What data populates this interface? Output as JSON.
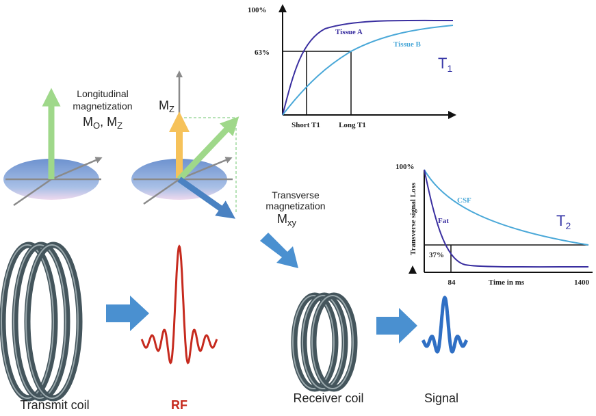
{
  "longitudinal": {
    "lines": [
      "Longitudinal",
      "magnetization"
    ],
    "symbol": [
      "M",
      "O",
      ", M",
      "Z"
    ]
  },
  "mz_label": [
    "M",
    "Z"
  ],
  "transverse": {
    "lines": [
      "Transverse",
      "magnetization"
    ],
    "symbol": [
      "M",
      "xy"
    ]
  },
  "t1_chart": {
    "top_label": "100%",
    "level_label": "63%",
    "curve_a": "Tissue A",
    "curve_b": "Tissue B",
    "x_labels": [
      "Short T1",
      "Long T1"
    ],
    "name": [
      "T",
      "1"
    ]
  },
  "t2_chart": {
    "top_label": "100%",
    "level_label": "37%",
    "curve_a": "CSF",
    "curve_b": "Fat",
    "y_axis": "Transverse signal Loss",
    "x_labels": [
      "84",
      "Time in ms",
      "1400"
    ],
    "name": [
      "T",
      "2"
    ]
  },
  "captions": {
    "transmit": "Transmit coil",
    "rf": "RF",
    "receiver": "Receiver coil",
    "signal": "Signal"
  }
}
